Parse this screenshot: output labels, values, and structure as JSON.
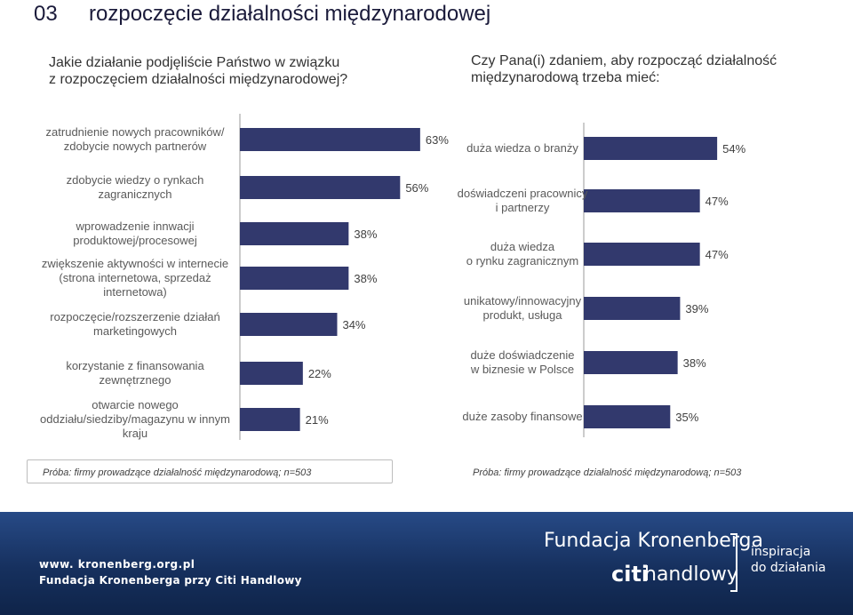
{
  "slide": {
    "number": "03",
    "title": "rozpoczęcie działalności międzynarodowej"
  },
  "colors": {
    "bar": "#32396d",
    "footer": "#1b3668"
  },
  "chart_data": [
    {
      "type": "bar",
      "orientation": "horizontal",
      "title": "Jakie działanie podjęliście Państwo w związku\nz rozpoczęciem działalności międzynarodowej?",
      "categories": [
        "zatrudnienie nowych pracowników/\nzdobycie nowych partnerów",
        "zdobycie wiedzy o rynkach\nzagranicznych",
        "wprowadzenie innwacji\nproduktowej/procesowej",
        "zwiększenie aktywności w internecie\n(strona internetowa, sprzedaż\ninternetowa)",
        "rozpoczęcie/rozszerzenie działań\nmarketingowych",
        "korzystanie z finansowania\nzewnętrznego",
        "otwarcie nowego\noddziału/siedziby/magazynu w innym\nkraju"
      ],
      "values": [
        63,
        56,
        38,
        38,
        34,
        22,
        21
      ],
      "value_labels": [
        "63%",
        "56%",
        "38%",
        "38%",
        "34%",
        "22%",
        "21%"
      ],
      "note": "Próba: firmy prowadzące działalność międzynarodową; n=503"
    },
    {
      "type": "bar",
      "orientation": "horizontal",
      "title": "Czy Pana(i) zdaniem, aby rozpocząć działalność\nmiędzynarodową trzeba mieć:",
      "categories": [
        "duża wiedza o branży",
        "doświadczeni pracownicy\ni partnerzy",
        "duża wiedza\no rynku zagranicznym",
        "unikatowy/innowacyjny\nprodukt, usługa",
        "duże doświadczenie\nw biznesie w Polsce",
        "duże zasoby finansowe"
      ],
      "values": [
        54,
        47,
        47,
        39,
        38,
        35
      ],
      "value_labels": [
        "54%",
        "47%",
        "47%",
        "39%",
        "38%",
        "35%"
      ],
      "note": "Próba: firmy prowadzące działalność międzynarodową; n=503"
    }
  ],
  "footer": {
    "url": "www. kronenberg.org.pl",
    "org": "Fundacja Kronenberga przy Citi Handlowy",
    "brand": "Fundacja Kronenberga",
    "citi": "citi",
    "handlowy": "handlowy",
    "tagline": "inspiracja\ndo działania"
  }
}
